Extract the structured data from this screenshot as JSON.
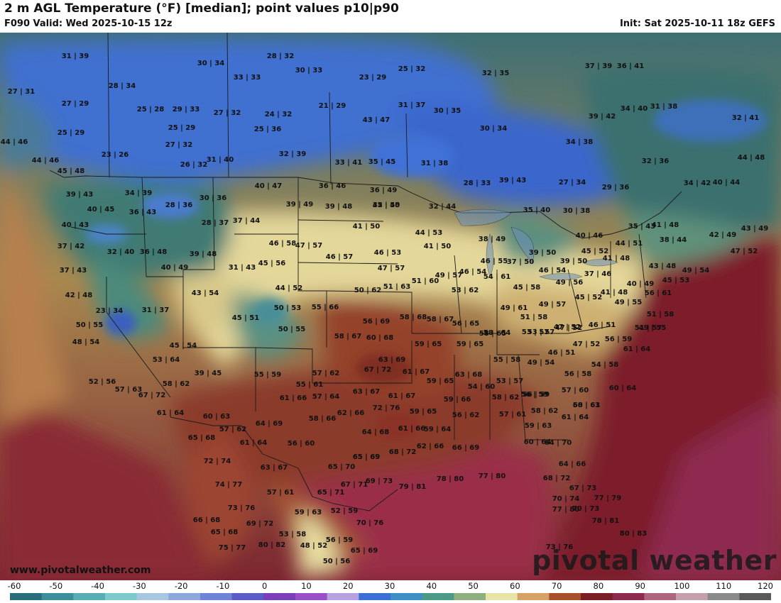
{
  "header": {
    "title": "2 m AGL Temperature (°F) [median]; point values p10|p90",
    "valid": "F090 Valid: Wed 2025-10-15 12z",
    "init": "Init: Sat 2025-10-11 18z GEFS"
  },
  "footer": {
    "site": "www.pivotalweather.com",
    "brand": "pivotal weather"
  },
  "colorbar": {
    "ticks": [
      "-60",
      "-50",
      "-40",
      "-30",
      "-20",
      "-10",
      "0",
      "10",
      "20",
      "30",
      "40",
      "50",
      "60",
      "70",
      "80",
      "90",
      "100",
      "110",
      "120"
    ],
    "stops": [
      "#2a6d7c",
      "#3b8e9a",
      "#57aeb7",
      "#7ec9cc",
      "#a7c7e0",
      "#8ea8dc",
      "#6f84d6",
      "#5a5cc8",
      "#7a3fb9",
      "#9b4ec9",
      "#b8a1e0",
      "#3b6fd6",
      "#3d8fc5",
      "#4a9a86",
      "#8fb07e",
      "#e8e3a6",
      "#d7a065",
      "#a8502c",
      "#7c1f22",
      "#8e2a50",
      "#b0657e",
      "#c5a0ac",
      "#8a8a8a",
      "#5a5a5a"
    ]
  },
  "map_colors": {
    "cold_blue": "#4a78d0",
    "cool_teal": "#3f7f78",
    "mild_yellow": "#e8dfa0",
    "warm_brown": "#9c4a2c",
    "hot_maroon": "#7a2430",
    "ocean_warm": "#8e2a44"
  },
  "point_values": [
    {
      "t": "31|39"
    },
    {
      "t": "28|32"
    },
    {
      "t": "30|34"
    },
    {
      "t": "33|33"
    },
    {
      "t": "30|33"
    },
    {
      "t": "23|29"
    },
    {
      "t": "25|32"
    },
    {
      "t": "32|35"
    },
    {
      "t": "37|39"
    },
    {
      "t": "36|41"
    },
    {
      "t": "27|31"
    },
    {
      "t": "28|34"
    },
    {
      "t": "27|29"
    },
    {
      "t": "25|28"
    },
    {
      "t": "29|33"
    },
    {
      "t": "27|32"
    },
    {
      "t": "24|32"
    },
    {
      "t": "21|29"
    },
    {
      "t": "31|37"
    },
    {
      "t": "30|35"
    },
    {
      "t": "34|40"
    },
    {
      "t": "31|38"
    },
    {
      "t": "39|42"
    },
    {
      "t": "32|41"
    },
    {
      "t": "25|29"
    },
    {
      "t": "25|29"
    },
    {
      "t": "25|36"
    },
    {
      "t": "43|47"
    },
    {
      "t": "30|34"
    },
    {
      "t": "44|46"
    },
    {
      "t": "27|32"
    },
    {
      "t": "32|39"
    },
    {
      "t": "34|38"
    },
    {
      "t": "23|26"
    },
    {
      "t": "26|32"
    },
    {
      "t": "31|40"
    },
    {
      "t": "33|41"
    },
    {
      "t": "35|45"
    },
    {
      "t": "31|38"
    },
    {
      "t": "32|36"
    },
    {
      "t": "44|48"
    },
    {
      "t": "44|46"
    },
    {
      "t": "45|48"
    },
    {
      "t": "29|36"
    },
    {
      "t": "27|34"
    },
    {
      "t": "28|33"
    },
    {
      "t": "39|43"
    },
    {
      "t": "34|42"
    },
    {
      "t": "40|44"
    },
    {
      "t": "39|43"
    },
    {
      "t": "34|39"
    },
    {
      "t": "30|36"
    },
    {
      "t": "40|47"
    },
    {
      "t": "36|46"
    },
    {
      "t": "36|49"
    },
    {
      "t": "35|45"
    },
    {
      "t": "40|45"
    },
    {
      "t": "28|36"
    },
    {
      "t": "39|49"
    },
    {
      "t": "39|48"
    },
    {
      "t": "42|50"
    },
    {
      "t": "32|44"
    },
    {
      "t": "35|40"
    },
    {
      "t": "30|38"
    },
    {
      "t": "36|43"
    },
    {
      "t": "40|43"
    },
    {
      "t": "28|37"
    },
    {
      "t": "37|44"
    },
    {
      "t": "41|50"
    },
    {
      "t": "44|53"
    },
    {
      "t": "35|43"
    },
    {
      "t": "41|48"
    },
    {
      "t": "42|49"
    },
    {
      "t": "43|49"
    },
    {
      "t": "37|42"
    },
    {
      "t": "32|40"
    },
    {
      "t": "36|48"
    },
    {
      "t": "46|58"
    },
    {
      "t": "47|57"
    },
    {
      "t": "38|49"
    },
    {
      "t": "40|46"
    },
    {
      "t": "38|44"
    },
    {
      "t": "39|48"
    },
    {
      "t": "46|57"
    },
    {
      "t": "46|53"
    },
    {
      "t": "41|50"
    },
    {
      "t": "39|50"
    },
    {
      "t": "45|52"
    },
    {
      "t": "44|51"
    },
    {
      "t": "47|52"
    },
    {
      "t": "37|43"
    },
    {
      "t": "40|49"
    },
    {
      "t": "31|43"
    },
    {
      "t": "45|56"
    },
    {
      "t": "47|57"
    },
    {
      "t": "46|55"
    },
    {
      "t": "37|50"
    },
    {
      "t": "39|50"
    },
    {
      "t": "41|48"
    },
    {
      "t": "43|48"
    },
    {
      "t": "42|48"
    },
    {
      "t": "43|54"
    },
    {
      "t": "44|52"
    },
    {
      "t": "51|63"
    },
    {
      "t": "51|60"
    },
    {
      "t": "49|57"
    },
    {
      "t": "46|54"
    },
    {
      "t": "54|61"
    },
    {
      "t": "46|54"
    },
    {
      "t": "37|46"
    },
    {
      "t": "49|54"
    },
    {
      "t": "23|34"
    },
    {
      "t": "31|37"
    },
    {
      "t": "50|53"
    },
    {
      "t": "55|66"
    },
    {
      "t": "50|62"
    },
    {
      "t": "53|62"
    },
    {
      "t": "45|58"
    },
    {
      "t": "49|56"
    },
    {
      "t": "40|49"
    },
    {
      "t": "45|53"
    },
    {
      "t": "50|55"
    },
    {
      "t": "45|51"
    },
    {
      "t": "56|69"
    },
    {
      "t": "58|68"
    },
    {
      "t": "58|67"
    },
    {
      "t": "56|65"
    },
    {
      "t": "49|61"
    },
    {
      "t": "41|48"
    },
    {
      "t": "56|61"
    },
    {
      "t": "47|52"
    },
    {
      "t": "50|55"
    },
    {
      "t": "58|67"
    },
    {
      "t": "60|68"
    },
    {
      "t": "59|65"
    },
    {
      "t": "59|65"
    },
    {
      "t": "51|58"
    },
    {
      "t": "49|57"
    },
    {
      "t": "45|52"
    },
    {
      "t": "49|55"
    },
    {
      "t": "51|58"
    },
    {
      "t": "49|55"
    },
    {
      "t": "45|54"
    },
    {
      "t": "53|57"
    },
    {
      "t": "58|65"
    },
    {
      "t": "58|64"
    },
    {
      "t": "53|57"
    },
    {
      "t": "47|52"
    },
    {
      "t": "46|51"
    },
    {
      "t": "51|57"
    },
    {
      "t": "48|54"
    },
    {
      "t": "53|64"
    },
    {
      "t": "63|69"
    },
    {
      "t": "55|58"
    },
    {
      "t": "46|51"
    },
    {
      "t": "47|52"
    },
    {
      "t": "56|59"
    },
    {
      "t": "61|64"
    },
    {
      "t": "39|45"
    },
    {
      "t": "55|59"
    },
    {
      "t": "57|62"
    },
    {
      "t": "67|72"
    },
    {
      "t": "61|67"
    },
    {
      "t": "63|68"
    },
    {
      "t": "49|54"
    },
    {
      "t": "54|58"
    },
    {
      "t": "52|56"
    },
    {
      "t": "58|62"
    },
    {
      "t": "55|61"
    },
    {
      "t": "59|65"
    },
    {
      "t": "54|60"
    },
    {
      "t": "53|57"
    },
    {
      "t": "56|58"
    },
    {
      "t": "60|64"
    },
    {
      "t": "56|59"
    },
    {
      "t": "57|63"
    },
    {
      "t": "67|72"
    },
    {
      "t": "57|64"
    },
    {
      "t": "63|67"
    },
    {
      "t": "61|67"
    },
    {
      "t": "59|66"
    },
    {
      "t": "58|62"
    },
    {
      "t": "56|59"
    },
    {
      "t": "57|60"
    },
    {
      "t": "58|61"
    },
    {
      "t": "61|64"
    },
    {
      "t": "60|63"
    },
    {
      "t": "61|66"
    },
    {
      "t": "62|66"
    },
    {
      "t": "72|76"
    },
    {
      "t": "59|65"
    },
    {
      "t": "56|62"
    },
    {
      "t": "57|61"
    },
    {
      "t": "58|62"
    },
    {
      "t": "60|63"
    },
    {
      "t": "57|62"
    },
    {
      "t": "64|69"
    },
    {
      "t": "58|66"
    },
    {
      "t": "64|68"
    },
    {
      "t": "61|66"
    },
    {
      "t": "59|64"
    },
    {
      "t": "59|63"
    },
    {
      "t": "61|64"
    },
    {
      "t": "65|68"
    },
    {
      "t": "61|64"
    },
    {
      "t": "56|60"
    },
    {
      "t": "62|66"
    },
    {
      "t": "65|69"
    },
    {
      "t": "60|64"
    },
    {
      "t": "64|70"
    },
    {
      "t": "66|69"
    },
    {
      "t": "68|72"
    },
    {
      "t": "72|74"
    },
    {
      "t": "63|67"
    },
    {
      "t": "65|70"
    },
    {
      "t": "65|69"
    },
    {
      "t": "64|66"
    },
    {
      "t": "74|77"
    },
    {
      "t": "57|61"
    },
    {
      "t": "65|71"
    },
    {
      "t": "67|71"
    },
    {
      "t": "69|73"
    },
    {
      "t": "79|81"
    },
    {
      "t": "78|80"
    },
    {
      "t": "77|80"
    },
    {
      "t": "68|72"
    },
    {
      "t": "67|73"
    },
    {
      "t": "73|76"
    },
    {
      "t": "70|74"
    },
    {
      "t": "70|73"
    },
    {
      "t": "77|79"
    },
    {
      "t": "59|63"
    },
    {
      "t": "52|59"
    },
    {
      "t": "77|80"
    },
    {
      "t": "66|68"
    },
    {
      "t": "69|72"
    },
    {
      "t": "70|76"
    },
    {
      "t": "78|81"
    },
    {
      "t": "65|68"
    },
    {
      "t": "53|58"
    },
    {
      "t": "80|83"
    },
    {
      "t": "56|59"
    },
    {
      "t": "75|77"
    },
    {
      "t": "80|82"
    },
    {
      "t": "48|52"
    },
    {
      "t": "65|69"
    },
    {
      "t": "73|76"
    },
    {
      "t": "50|56"
    }
  ]
}
